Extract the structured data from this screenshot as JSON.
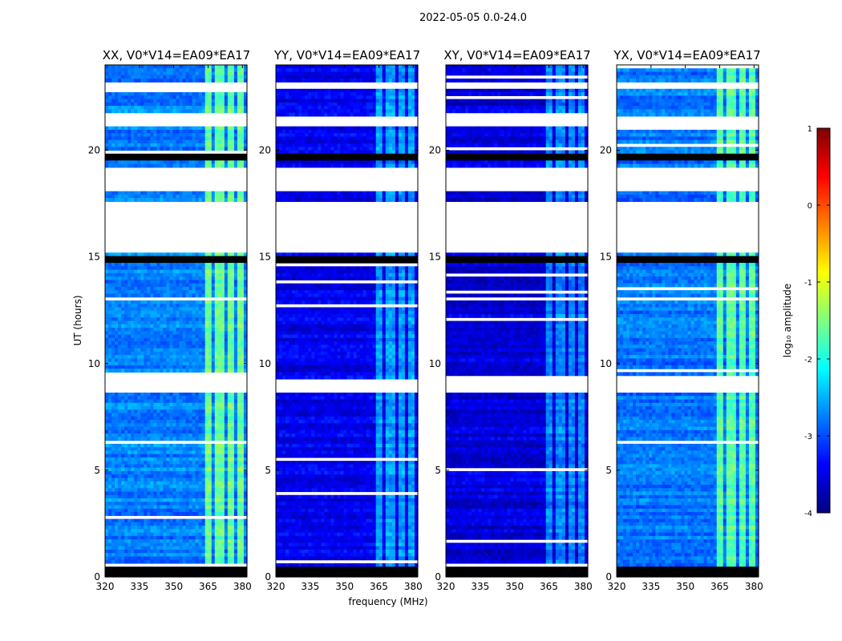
{
  "figure": {
    "title": "2022-05-05 0.0-24.0"
  },
  "chart_data": {
    "type": "heatmap",
    "title": "2022-05-05 0.0-24.0",
    "xlabel": "frequency (MHz)",
    "ylabel": "UT (hours)",
    "xlim": [
      320,
      382
    ],
    "ylim": [
      0,
      24
    ],
    "xticks": [
      320,
      335,
      350,
      365,
      380
    ],
    "yticks": [
      0,
      5,
      10,
      15,
      20
    ],
    "colorbar": {
      "label": "log₁₀ amplitude",
      "range": [
        -4,
        1
      ],
      "ticks": [
        -4,
        -3,
        -2,
        -1,
        0,
        1
      ],
      "colormap": [
        "#00007f",
        "#0000ff",
        "#007fff",
        "#00ffff",
        "#7fff7f",
        "#ffff00",
        "#ff7f00",
        "#ff0000",
        "#7f0000"
      ]
    },
    "panels": [
      {
        "title": "XX, V0*V14=EA09*EA17",
        "base_level": -2.75,
        "rfi_level": -1.6
      },
      {
        "title": "YY, V0*V14=EA09*EA17",
        "base_level": -3.45,
        "rfi_level": -2.6
      },
      {
        "title": "XY, V0*V14=EA09*EA17",
        "base_level": -3.55,
        "rfi_level": -2.7
      },
      {
        "title": "YX, V0*V14=EA09*EA17",
        "base_level": -2.8,
        "rfi_level": -1.7
      }
    ],
    "rfi_channels_mhz": [
      [
        363.5,
        366.8
      ],
      [
        368.5,
        371.5
      ],
      [
        373.5,
        376.5
      ],
      [
        378,
        381
      ]
    ],
    "flagged_hours": [
      [
        18.1,
        19.2
      ],
      [
        15.15,
        17.6
      ],
      [
        8.7,
        9.3
      ],
      [
        21.1,
        21.6
      ],
      [
        22.95,
        23.15
      ],
      [
        0.25,
        0.4
      ]
    ],
    "dark_hours": [
      [
        19.5,
        19.8
      ],
      [
        14.8,
        15.0
      ],
      [
        0.0,
        0.25
      ],
      [
        0.4,
        0.55
      ]
    ]
  }
}
